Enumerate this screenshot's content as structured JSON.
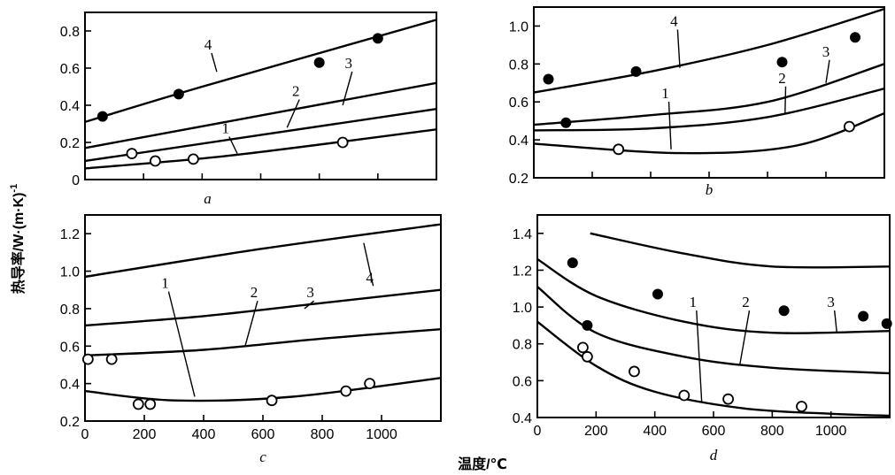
{
  "figure": {
    "ylabel": "热导率/W·(m·K)",
    "ylabel_superscript": "-1",
    "xlabel": "温度/℃"
  },
  "chart_data": [
    {
      "id": "a",
      "type": "line",
      "title": "a",
      "xlim": [
        0,
        1200
      ],
      "ylim": [
        0,
        0.9
      ],
      "xticks": [],
      "yticks": [
        0,
        0.2,
        0.4,
        0.6,
        0.8
      ],
      "ytick_labels": [
        "0",
        "0.2",
        "0.4",
        "0.6",
        "0.8"
      ],
      "lines": [
        {
          "label": "1",
          "points": [
            [
              0,
              0.06
            ],
            [
              500,
              0.13
            ],
            [
              1200,
              0.27
            ]
          ]
        },
        {
          "label": "2",
          "points": [
            [
              0,
              0.1
            ],
            [
              1200,
              0.38
            ]
          ]
        },
        {
          "label": "3",
          "points": [
            [
              0,
              0.17
            ],
            [
              1200,
              0.52
            ]
          ]
        },
        {
          "label": "4",
          "points": [
            [
              0,
              0.31
            ],
            [
              400,
              0.5
            ],
            [
              1200,
              0.86
            ]
          ]
        }
      ],
      "filled_points": [
        [
          60,
          0.34
        ],
        [
          320,
          0.46
        ],
        [
          800,
          0.63
        ],
        [
          1000,
          0.76
        ]
      ],
      "open_points": [
        [
          160,
          0.14
        ],
        [
          240,
          0.1
        ],
        [
          370,
          0.11
        ],
        [
          880,
          0.2
        ]
      ],
      "line_labels": [
        {
          "text": "1",
          "line": 0,
          "at": [
            480,
            0.25
          ],
          "anchor": [
            520,
            0.14
          ]
        },
        {
          "text": "2",
          "line": 1,
          "at": [
            720,
            0.45
          ],
          "anchor": [
            690,
            0.28
          ]
        },
        {
          "text": "3",
          "line": 2,
          "at": [
            900,
            0.6
          ],
          "anchor": [
            880,
            0.4
          ]
        },
        {
          "text": "4",
          "line": 3,
          "at": [
            420,
            0.7
          ],
          "anchor": [
            450,
            0.58
          ]
        }
      ]
    },
    {
      "id": "b",
      "type": "line",
      "title": "b",
      "xlim": [
        0,
        1200
      ],
      "ylim": [
        0.2,
        1.1
      ],
      "xticks": [],
      "yticks": [
        0.2,
        0.4,
        0.6,
        0.8,
        1.0
      ],
      "ytick_labels": [
        "0.2",
        "0.4",
        "0.6",
        "0.8",
        "1.0"
      ],
      "lines": [
        {
          "label": "1",
          "points": [
            [
              0,
              0.38
            ],
            [
              500,
              0.33
            ],
            [
              900,
              0.37
            ],
            [
              1200,
              0.54
            ]
          ]
        },
        {
          "label": "2",
          "points": [
            [
              0,
              0.45
            ],
            [
              400,
              0.46
            ],
            [
              800,
              0.52
            ],
            [
              1200,
              0.67
            ]
          ]
        },
        {
          "label": "3",
          "points": [
            [
              0,
              0.48
            ],
            [
              400,
              0.53
            ],
            [
              800,
              0.6
            ],
            [
              1200,
              0.8
            ]
          ]
        },
        {
          "label": "4",
          "points": [
            [
              0,
              0.65
            ],
            [
              400,
              0.76
            ],
            [
              800,
              0.9
            ],
            [
              1200,
              1.09
            ]
          ]
        }
      ],
      "filled_points": [
        [
          50,
          0.72
        ],
        [
          110,
          0.49
        ],
        [
          350,
          0.76
        ],
        [
          850,
          0.81
        ],
        [
          1100,
          0.94
        ]
      ],
      "open_points": [
        [
          290,
          0.35
        ],
        [
          1080,
          0.47
        ]
      ],
      "line_labels": [
        {
          "text": "1",
          "line": 0,
          "at": [
            450,
            0.62
          ],
          "anchor": [
            470,
            0.35
          ]
        },
        {
          "text": "2",
          "line": 1,
          "at": [
            850,
            0.7
          ],
          "anchor": [
            860,
            0.54
          ]
        },
        {
          "text": "3",
          "line": 2,
          "at": [
            1000,
            0.84
          ],
          "anchor": [
            1000,
            0.7
          ]
        },
        {
          "text": "4",
          "line": 3,
          "at": [
            480,
            1.0
          ],
          "anchor": [
            500,
            0.78
          ]
        }
      ]
    },
    {
      "id": "c",
      "type": "line",
      "title": "c",
      "xlim": [
        0,
        1200
      ],
      "ylim": [
        0.2,
        1.3
      ],
      "xticks": [
        0,
        200,
        400,
        600,
        800,
        1000
      ],
      "xtick_labels": [
        "0",
        "200",
        "400",
        "600",
        "800",
        "1000"
      ],
      "yticks": [
        0.2,
        0.4,
        0.6,
        0.8,
        1.0,
        1.2
      ],
      "ytick_labels": [
        "0.2",
        "0.4",
        "0.6",
        "0.8",
        "1.0",
        "1.2"
      ],
      "lines": [
        {
          "label": "1",
          "points": [
            [
              0,
              0.36
            ],
            [
              300,
              0.31
            ],
            [
              700,
              0.33
            ],
            [
              1200,
              0.43
            ]
          ]
        },
        {
          "label": "2",
          "points": [
            [
              0,
              0.55
            ],
            [
              400,
              0.58
            ],
            [
              800,
              0.64
            ],
            [
              1200,
              0.69
            ]
          ]
        },
        {
          "label": "3",
          "points": [
            [
              0,
              0.71
            ],
            [
              400,
              0.76
            ],
            [
              800,
              0.83
            ],
            [
              1200,
              0.9
            ]
          ]
        },
        {
          "label": "4",
          "points": [
            [
              0,
              0.97
            ],
            [
              600,
              1.12
            ],
            [
              1200,
              1.25
            ]
          ]
        }
      ],
      "filled_points": [],
      "open_points": [
        [
          10,
          0.53
        ],
        [
          90,
          0.53
        ],
        [
          180,
          0.29
        ],
        [
          220,
          0.29
        ],
        [
          630,
          0.31
        ],
        [
          880,
          0.36
        ],
        [
          960,
          0.4
        ]
      ],
      "line_labels": [
        {
          "text": "1",
          "line": 0,
          "at": [
            270,
            0.91
          ],
          "anchor": [
            370,
            0.33
          ]
        },
        {
          "text": "2",
          "line": 1,
          "at": [
            570,
            0.86
          ],
          "anchor": [
            540,
            0.6
          ]
        },
        {
          "text": "3",
          "line": 2,
          "at": [
            760,
            0.86
          ],
          "anchor": [
            740,
            0.8
          ]
        },
        {
          "text": "4",
          "line": 3,
          "at": [
            960,
            0.94
          ],
          "anchor": [
            940,
            1.15
          ]
        }
      ]
    },
    {
      "id": "d",
      "type": "line",
      "title": "d",
      "xlim": [
        0,
        1200
      ],
      "ylim": [
        0.4,
        1.5
      ],
      "xticks": [
        0,
        200,
        400,
        600,
        800,
        1000
      ],
      "xtick_labels": [
        "0",
        "200",
        "400",
        "600",
        "800",
        "1000"
      ],
      "yticks": [
        0.4,
        0.6,
        0.8,
        1.0,
        1.2,
        1.4
      ],
      "ytick_labels": [
        "0.4",
        "0.6",
        "0.8",
        "1.0",
        "1.2",
        "1.4"
      ],
      "lines": [
        {
          "label": "1",
          "points": [
            [
              0,
              0.92
            ],
            [
              200,
              0.68
            ],
            [
              400,
              0.54
            ],
            [
              700,
              0.45
            ],
            [
              1000,
              0.42
            ],
            [
              1200,
              0.41
            ]
          ]
        },
        {
          "label": "2",
          "points": [
            [
              0,
              1.11
            ],
            [
              200,
              0.86
            ],
            [
              500,
              0.73
            ],
            [
              800,
              0.67
            ],
            [
              1200,
              0.64
            ]
          ]
        },
        {
          "label": "3",
          "points": [
            [
              0,
              1.26
            ],
            [
              200,
              1.06
            ],
            [
              500,
              0.92
            ],
            [
              800,
              0.86
            ],
            [
              1200,
              0.87
            ]
          ]
        },
        {
          "label": "4",
          "points": [
            [
              180,
              1.4
            ],
            [
              500,
              1.29
            ],
            [
              800,
              1.22
            ],
            [
              1200,
              1.22
            ]
          ]
        }
      ],
      "filled_points": [
        [
          120,
          1.24
        ],
        [
          170,
          0.9
        ],
        [
          410,
          1.07
        ],
        [
          840,
          0.98
        ],
        [
          1110,
          0.95
        ],
        [
          1190,
          0.91
        ]
      ],
      "open_points": [
        [
          155,
          0.78
        ],
        [
          170,
          0.73
        ],
        [
          330,
          0.65
        ],
        [
          500,
          0.52
        ],
        [
          650,
          0.5
        ],
        [
          900,
          0.46
        ]
      ],
      "line_labels": [
        {
          "text": "1",
          "line": 0,
          "at": [
            530,
            1.0
          ],
          "anchor": [
            560,
            0.48
          ]
        },
        {
          "text": "2",
          "line": 1,
          "at": [
            710,
            1.0
          ],
          "anchor": [
            690,
            0.69
          ]
        },
        {
          "text": "3",
          "line": 2,
          "at": [
            1000,
            1.0
          ],
          "anchor": [
            1020,
            0.86
          ]
        }
      ]
    }
  ]
}
